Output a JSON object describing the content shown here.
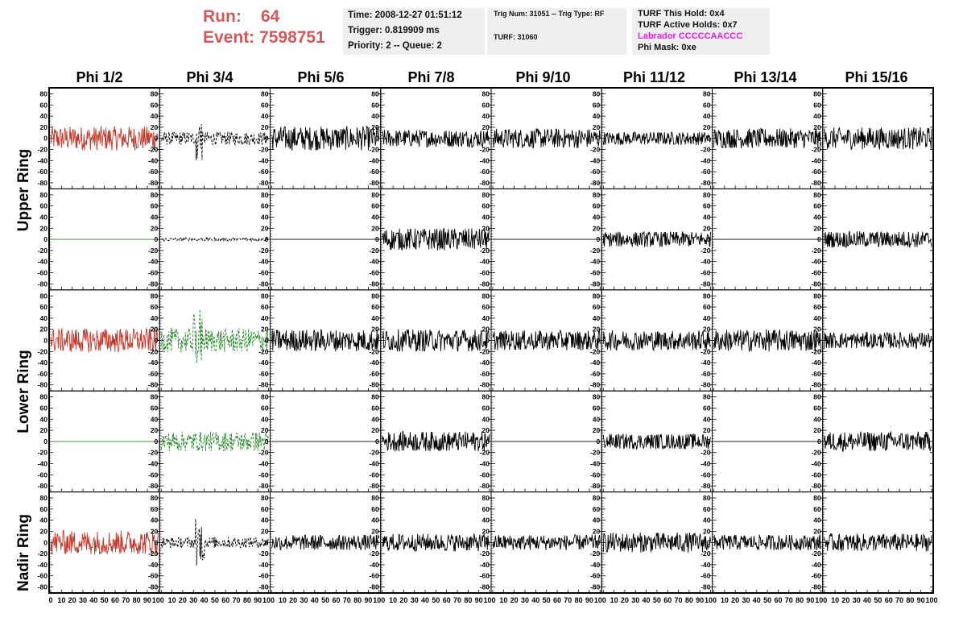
{
  "header": {
    "run_label": "Run:",
    "run_value": "64",
    "event_label": "Event:",
    "event_value": "7598751",
    "time": "Time: 2008-12-27 01:51:12",
    "trigger": "Trigger: 0.819909 ms",
    "priority": "Priority: 2 -- Queue: 2",
    "trig_num": "Trig Num: 31051 -- Trig Type: RF",
    "turf": "TURF: 31060",
    "turf_this_hold": "TURF This Hold: 0x4",
    "turf_active_holds": "TURF Active Holds: 0x7",
    "labrador": "Labrador CCCCCAACCC",
    "phi_mask": "Phi Mask: 0xe"
  },
  "colors": {
    "run_text": "#d05a5a",
    "labrador_text": "#e81be8",
    "trace_red": "#c0392b",
    "trace_green": "#2a8a2a",
    "trace_black": "#000000"
  },
  "columns": [
    "Phi 1/2",
    "Phi 3/4",
    "Phi 5/6",
    "Phi 7/8",
    "Phi 9/10",
    "Phi 11/12",
    "Phi 13/14",
    "Phi 15/16"
  ],
  "rings": [
    "Upper Ring",
    "Lower Ring",
    "Nadir Ring"
  ],
  "chart_data": {
    "type": "line",
    "xlim": [
      0,
      100
    ],
    "ylim": [
      -85,
      85
    ],
    "x_ticks": [
      0,
      10,
      20,
      30,
      40,
      50,
      60,
      70,
      80,
      90,
      100
    ],
    "y_ticks": [
      80,
      60,
      40,
      20,
      0,
      -20,
      -40,
      -60,
      -80
    ],
    "rows": 5,
    "cols": 8,
    "panels": [
      {
        "row": 0,
        "col": 0,
        "color": "red",
        "style": "solid",
        "amplitude": 22,
        "flat": false
      },
      {
        "row": 0,
        "col": 1,
        "color": "black",
        "style": "dashed",
        "amplitude": 12,
        "flat": false,
        "burst": [
          32,
          38,
          60
        ]
      },
      {
        "row": 0,
        "col": 2,
        "color": "black",
        "style": "solid",
        "amplitude": 22,
        "flat": false
      },
      {
        "row": 0,
        "col": 3,
        "color": "black",
        "style": "solid",
        "amplitude": 16,
        "flat": false
      },
      {
        "row": 0,
        "col": 4,
        "color": "black",
        "style": "solid",
        "amplitude": 18,
        "flat": false
      },
      {
        "row": 0,
        "col": 5,
        "color": "black",
        "style": "solid",
        "amplitude": 12,
        "flat": false
      },
      {
        "row": 0,
        "col": 6,
        "color": "black",
        "style": "solid",
        "amplitude": 18,
        "flat": false
      },
      {
        "row": 0,
        "col": 7,
        "color": "black",
        "style": "solid",
        "amplitude": 20,
        "flat": false
      },
      {
        "row": 1,
        "col": 0,
        "color": "green",
        "style": "solid",
        "amplitude": 0,
        "flat": true
      },
      {
        "row": 1,
        "col": 1,
        "color": "black",
        "style": "dashed",
        "amplitude": 3,
        "flat": false
      },
      {
        "row": 1,
        "col": 2,
        "color": "black",
        "style": "solid",
        "amplitude": 0,
        "flat": true
      },
      {
        "row": 1,
        "col": 3,
        "color": "black",
        "style": "solid",
        "amplitude": 20,
        "flat": false
      },
      {
        "row": 1,
        "col": 4,
        "color": "black",
        "style": "solid",
        "amplitude": 0,
        "flat": true
      },
      {
        "row": 1,
        "col": 5,
        "color": "black",
        "style": "solid",
        "amplitude": 14,
        "flat": false
      },
      {
        "row": 1,
        "col": 6,
        "color": "black",
        "style": "solid",
        "amplitude": 0,
        "flat": true
      },
      {
        "row": 1,
        "col": 7,
        "color": "black",
        "style": "solid",
        "amplitude": 15,
        "flat": false
      },
      {
        "row": 2,
        "col": 0,
        "color": "red",
        "style": "solid",
        "amplitude": 22,
        "flat": false
      },
      {
        "row": 2,
        "col": 1,
        "color": "green",
        "style": "dashed",
        "amplitude": 22,
        "flat": false,
        "burst": [
          30,
          38,
          80
        ]
      },
      {
        "row": 2,
        "col": 2,
        "color": "black",
        "style": "solid",
        "amplitude": 20,
        "flat": false
      },
      {
        "row": 2,
        "col": 3,
        "color": "black",
        "style": "solid",
        "amplitude": 20,
        "flat": false
      },
      {
        "row": 2,
        "col": 4,
        "color": "black",
        "style": "solid",
        "amplitude": 18,
        "flat": false
      },
      {
        "row": 2,
        "col": 5,
        "color": "black",
        "style": "solid",
        "amplitude": 18,
        "flat": false
      },
      {
        "row": 2,
        "col": 6,
        "color": "black",
        "style": "solid",
        "amplitude": 20,
        "flat": false
      },
      {
        "row": 2,
        "col": 7,
        "color": "black",
        "style": "solid",
        "amplitude": 15,
        "flat": false
      },
      {
        "row": 3,
        "col": 0,
        "color": "green",
        "style": "solid",
        "amplitude": 0,
        "flat": true
      },
      {
        "row": 3,
        "col": 1,
        "color": "green",
        "style": "dashed",
        "amplitude": 18,
        "flat": false
      },
      {
        "row": 3,
        "col": 2,
        "color": "black",
        "style": "solid",
        "amplitude": 0,
        "flat": true
      },
      {
        "row": 3,
        "col": 3,
        "color": "black",
        "style": "solid",
        "amplitude": 18,
        "flat": false
      },
      {
        "row": 3,
        "col": 4,
        "color": "black",
        "style": "solid",
        "amplitude": 0,
        "flat": true
      },
      {
        "row": 3,
        "col": 5,
        "color": "black",
        "style": "solid",
        "amplitude": 14,
        "flat": false
      },
      {
        "row": 3,
        "col": 6,
        "color": "black",
        "style": "solid",
        "amplitude": 0,
        "flat": true
      },
      {
        "row": 3,
        "col": 7,
        "color": "black",
        "style": "solid",
        "amplitude": 18,
        "flat": false
      },
      {
        "row": 4,
        "col": 0,
        "color": "red",
        "style": "solid",
        "amplitude": 22,
        "flat": false
      },
      {
        "row": 4,
        "col": 1,
        "color": "black",
        "style": "dashed",
        "amplitude": 10,
        "flat": false,
        "burst": [
          32,
          40,
          55
        ]
      },
      {
        "row": 4,
        "col": 2,
        "color": "black",
        "style": "solid",
        "amplitude": 14,
        "flat": false
      },
      {
        "row": 4,
        "col": 3,
        "color": "black",
        "style": "solid",
        "amplitude": 16,
        "flat": false
      },
      {
        "row": 4,
        "col": 4,
        "color": "black",
        "style": "solid",
        "amplitude": 14,
        "flat": false
      },
      {
        "row": 4,
        "col": 5,
        "color": "black",
        "style": "solid",
        "amplitude": 18,
        "flat": false
      },
      {
        "row": 4,
        "col": 6,
        "color": "black",
        "style": "solid",
        "amplitude": 14,
        "flat": false
      },
      {
        "row": 4,
        "col": 7,
        "color": "black",
        "style": "solid",
        "amplitude": 16,
        "flat": false
      }
    ]
  }
}
